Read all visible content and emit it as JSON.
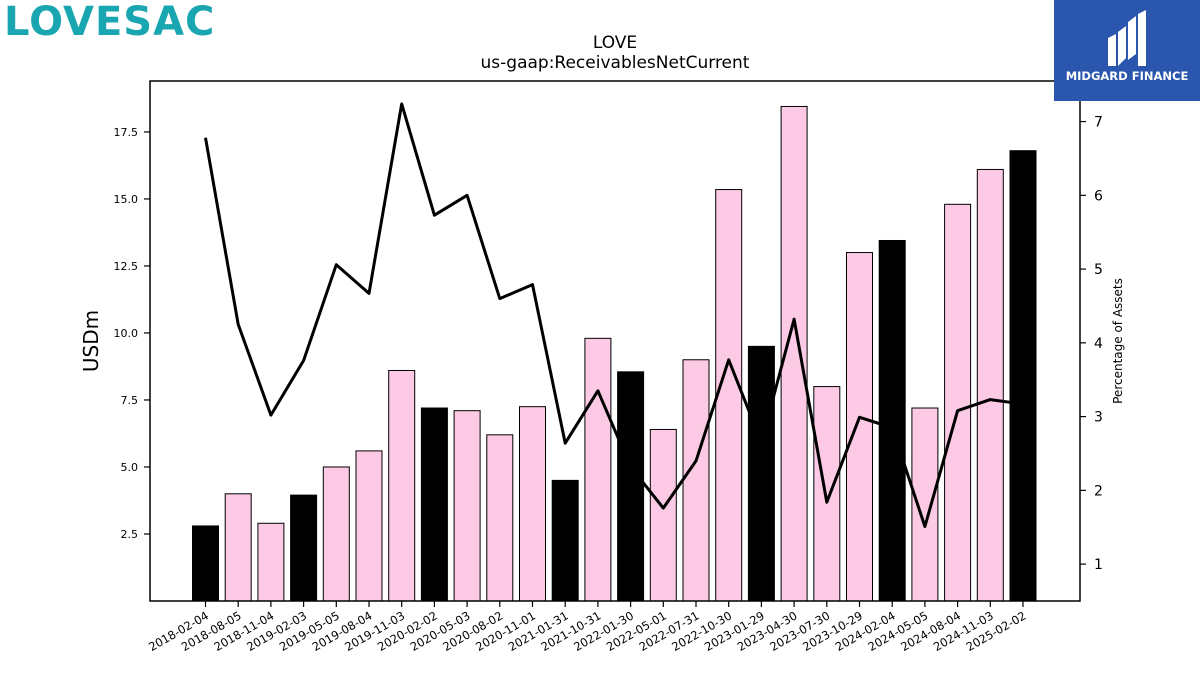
{
  "branding": {
    "company_logo_text": "LOVESAC",
    "publisher_logo_text": "MIDGARD FINANCE",
    "company_color": "#1aa6b0",
    "publisher_color": "#2a56ad"
  },
  "chart_data": {
    "type": "bar",
    "title": "LOVE",
    "subtitle": "us-gaap:ReceivablesNetCurrent",
    "ylabel": "USDm",
    "y2label": "Percentage of Assets",
    "categories": [
      "2018-02-04",
      "2018-08-05",
      "2018-11-04",
      "2019-02-03",
      "2019-05-05",
      "2019-08-04",
      "2019-11-03",
      "2020-02-02",
      "2020-05-03",
      "2020-08-02",
      "2020-11-01",
      "2021-01-31",
      "2021-10-31",
      "2022-01-30",
      "2022-05-01",
      "2022-07-31",
      "2022-10-30",
      "2023-01-29",
      "2023-04-30",
      "2023-07-30",
      "2023-10-29",
      "2024-02-04",
      "2024-05-05",
      "2024-08-04",
      "2024-11-03",
      "2025-02-02"
    ],
    "series": [
      {
        "values": [
          2.8,
          4.0,
          2.9,
          3.95,
          5.0,
          5.6,
          8.6,
          7.2,
          7.1,
          6.2,
          7.25,
          4.5,
          9.8,
          8.55,
          6.4,
          9.0,
          15.35,
          9.5,
          18.45,
          8.0,
          13.0,
          13.45,
          7.2,
          14.8,
          16.1,
          16.8
        ],
        "fiscal_year_end": [
          true,
          false,
          false,
          true,
          false,
          false,
          false,
          true,
          false,
          false,
          false,
          true,
          false,
          true,
          false,
          false,
          false,
          true,
          false,
          false,
          false,
          true,
          false,
          false,
          false,
          true
        ],
        "axis": "left"
      },
      {
        "values": [
          6.78,
          4.25,
          3.02,
          3.76,
          5.06,
          4.67,
          7.24,
          5.73,
          6.0,
          4.6,
          4.79,
          2.64,
          3.35,
          2.32,
          1.76,
          2.4,
          3.77,
          2.65,
          4.32,
          1.84,
          2.99,
          2.85,
          1.51,
          3.08,
          3.23,
          3.17
        ],
        "axis": "right"
      }
    ],
    "ylim": [
      0,
      19.4
    ],
    "y2lim": [
      0.5,
      7.55
    ],
    "yticks": [
      "2.5",
      "5.0",
      "7.5",
      "10.0",
      "12.5",
      "15.0",
      "17.5"
    ],
    "y2ticks": [
      "1",
      "2",
      "3",
      "4",
      "5",
      "6",
      "7"
    ],
    "colors": {
      "bar_fiscal_year_end": "#000000",
      "bar_quarter": "#fccae4",
      "line": "#000000"
    },
    "grid": false
  }
}
